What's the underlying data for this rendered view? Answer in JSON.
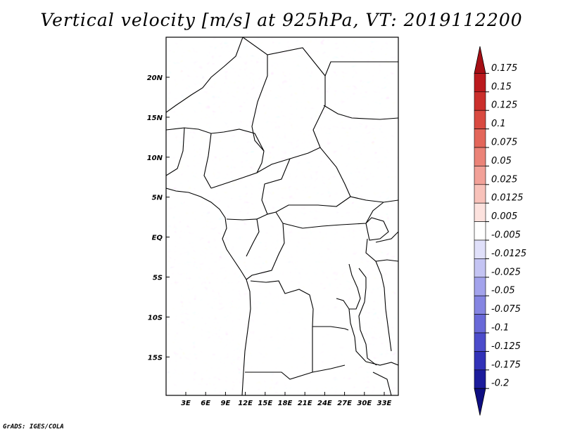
{
  "title": "Vertical velocity [m/s] at 925hPa, VT: 2019112200",
  "credit": "GrADS: IGES/COLA",
  "lat_labels": [
    "20N",
    "15N",
    "10N",
    "5N",
    "EQ",
    "5S",
    "10S",
    "15S"
  ],
  "lon_labels": [
    "3E",
    "6E",
    "9E",
    "12E",
    "15E",
    "18E",
    "21E",
    "24E",
    "27E",
    "30E",
    "33E"
  ],
  "colorbar": {
    "labels": [
      "0.175",
      "0.15",
      "0.125",
      "0.1",
      "0.075",
      "0.05",
      "0.025",
      "0.0125",
      "0.005",
      "-0.005",
      "-0.0125",
      "-0.025",
      "-0.05",
      "-0.075",
      "-0.1",
      "-0.125",
      "-0.175",
      "-0.2"
    ],
    "colors": [
      "#a50f15",
      "#bb1a1e",
      "#cb2f2c",
      "#d94a41",
      "#e3665a",
      "#eb8378",
      "#f2a198",
      "#f8c2ba",
      "#fce2de",
      "#ffffff",
      "#e0e0fa",
      "#c4c4f3",
      "#a3a3ec",
      "#8585e2",
      "#6969d8",
      "#4c4ccb",
      "#3232b8",
      "#1c1c9c",
      "#0e0e82"
    ]
  }
}
